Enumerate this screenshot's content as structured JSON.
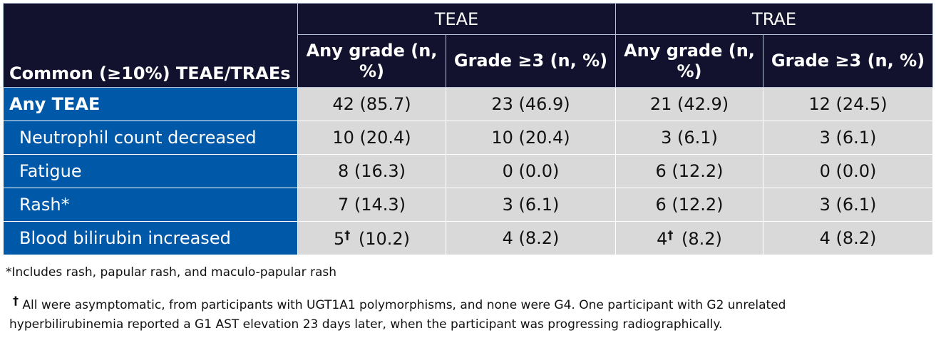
{
  "table": {
    "corner_header": "Common (≥10%) TEAE/TRAEs",
    "groups": [
      "TEAE",
      "TRAE"
    ],
    "subheaders": [
      "Any grade (n, %)",
      "Grade ≥3 (n, %)",
      "Any grade (n, %)",
      "Grade ≥3 (n, %)"
    ],
    "rows": [
      {
        "label": "Any TEAE",
        "cells": [
          {
            "v": "42 (85.7)"
          },
          {
            "v": "23 (46.9)"
          },
          {
            "v": "21 (42.9)"
          },
          {
            "v": "12 (24.5)"
          }
        ]
      },
      {
        "label": "Neutrophil count decreased",
        "cells": [
          {
            "v": "10 (20.4)"
          },
          {
            "v": "10 (20.4)"
          },
          {
            "v": "3 (6.1)"
          },
          {
            "v": "3 (6.1)"
          }
        ]
      },
      {
        "label": "Fatigue",
        "cells": [
          {
            "v": "8 (16.3)"
          },
          {
            "v": "0 (0.0)"
          },
          {
            "v": "6 (12.2)"
          },
          {
            "v": "0 (0.0)"
          }
        ]
      },
      {
        "label": "Rash*",
        "cells": [
          {
            "v": "7 (14.3)"
          },
          {
            "v": "3 (6.1)"
          },
          {
            "v": "6 (12.2)"
          },
          {
            "v": "3 (6.1)"
          }
        ]
      },
      {
        "label": "Blood bilirubin increased",
        "cells": [
          {
            "n": "5",
            "mark": "†",
            "p": "(10.2)"
          },
          {
            "v": "4 (8.2)"
          },
          {
            "n": "4",
            "mark": "†",
            "p": "(8.2)"
          },
          {
            "v": "4 (8.2)"
          }
        ]
      }
    ]
  },
  "footnotes": {
    "rash": "*Includes rash, papular rash, and maculo-papular rash",
    "dagger_mark": "†",
    "dagger_line1": "All were asymptomatic, from participants with UGT1A1 polymorphisms, and none were G4. One participant with G2 unrelated",
    "dagger_line2": "hyperbilirubinemia reported a G1 AST elevation 23 days later, when the participant was progressing radiographically."
  },
  "colors": {
    "header": "#12122e",
    "label_column": "#0058a9",
    "cell": "#d9d9d9"
  }
}
